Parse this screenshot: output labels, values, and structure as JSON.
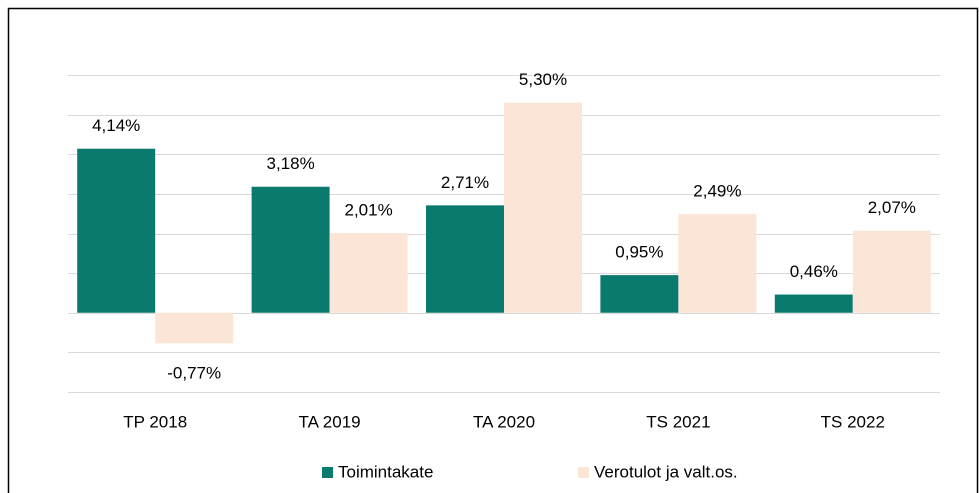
{
  "chart_data": {
    "type": "bar",
    "categories": [
      "TP 2018",
      "TA 2019",
      "TA 2020",
      "TS 2021",
      "TS 2022"
    ],
    "series": [
      {
        "name": "Toimintakate",
        "color": "#0b7a6e",
        "values": [
          4.14,
          3.18,
          2.71,
          0.95,
          0.46
        ],
        "value_labels": [
          "4,14%",
          "3,18%",
          "2,71%",
          "0,95%",
          "0,46%"
        ]
      },
      {
        "name": "Verotulot ja valt.os.",
        "color": "#fbe5d6",
        "values": [
          -0.77,
          2.01,
          5.3,
          2.49,
          2.07
        ],
        "value_labels": [
          "-0,77%",
          "2,01%",
          "5,30%",
          "2,49%",
          "2,07%"
        ]
      }
    ],
    "ylim": [
      -2,
      6
    ],
    "yticks": [
      -2,
      -1,
      0,
      1,
      2,
      3,
      4,
      5,
      6
    ],
    "grid": true,
    "legend": "bottom"
  }
}
